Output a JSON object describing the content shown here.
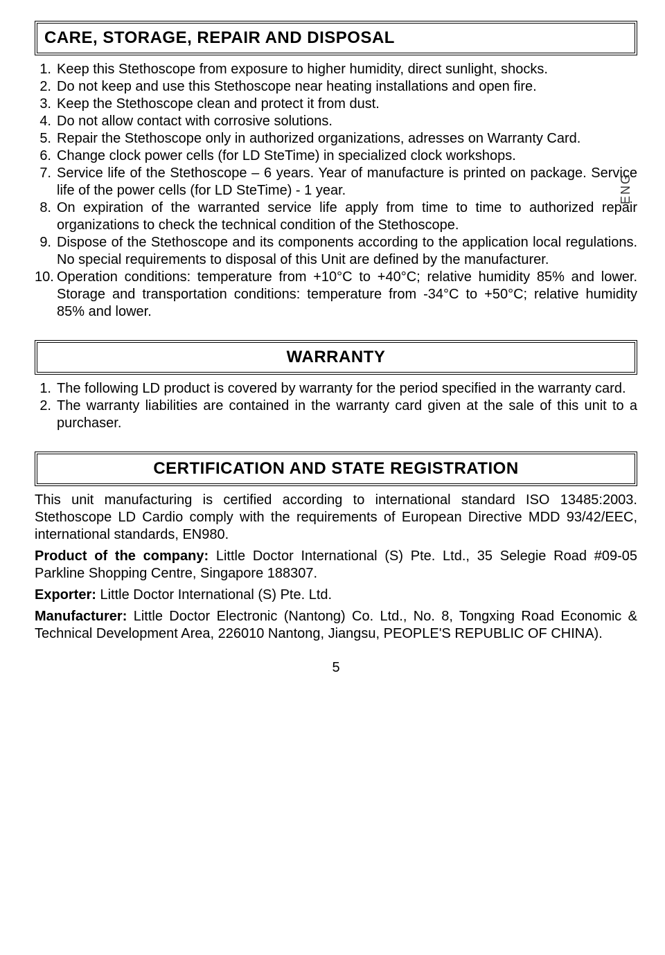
{
  "sideTab": "ENG",
  "sections": {
    "care": {
      "title": "CARE, STORAGE, REPAIR AND DISPOSAL",
      "items": [
        "Keep this Stethoscope from exposure to higher humidity, direct sunlight, shocks.",
        "Do not keep and use this Stethoscope near heating installations and open fire.",
        "Keep the Stethoscope clean and protect it from dust.",
        "Do not allow contact with corrosive solutions.",
        "Repair the Stethoscope only in authorized organizations, adresses on Warranty Card.",
        "Change clock power cells (for LD SteTime) in specialized clock workshops.",
        "Service life of the Stethoscope – 6 years. Year of manufacture is printed on package. Service life of the power cells (for LD SteTime) - 1 year.",
        "On expiration of the warranted service life apply from time to time to authorized repair organizations to check the technical condition of the Stethoscope.",
        "Dispose of the Stethoscope and its components according to the application local regulations. No special requirements to disposal of this Unit are defined by the manufacturer.",
        "Operation conditions: temperature from +10°C to +40°C; relative humidity 85% and lower. Storage and transportation conditions: temperature from -34°C to +50°C; relative humidity 85% and lower."
      ]
    },
    "warranty": {
      "title": "WARRANTY",
      "items": [
        "The following LD product is covered by warranty for the period specified in the warranty card.",
        "The warranty liabilities are contained in the warranty card given at the sale of this unit to a purchaser."
      ]
    },
    "cert": {
      "title": "CERTIFICATION AND STATE REGISTRATION",
      "intro": "This unit manufacturing is certified according to international standard ISO 13485:2003. Stethoscope LD Cardio comply with the requirements of European Directive MDD 93/42/EEC, international standards, EN980.",
      "productLabel": "Product of the company:",
      "productText": " Little Doctor International (S) Pte. Ltd., 35 Selegie Road #09-05 Parkline Shopping Centre, Singapore 188307.",
      "exporterLabel": "Exporter:",
      "exporterText": " Little Doctor International (S) Pte. Ltd.",
      "manufacturerLabel": "Manufacturer:",
      "manufacturerText": " Little Doctor Electronic (Nantong) Co. Ltd., No. 8, Tongxing Road Economic & Technical Development Area, 226010 Nantong, Jiangsu, PEOPLE'S REPUBLIC OF CHINA)."
    }
  },
  "pageNumber": "5"
}
